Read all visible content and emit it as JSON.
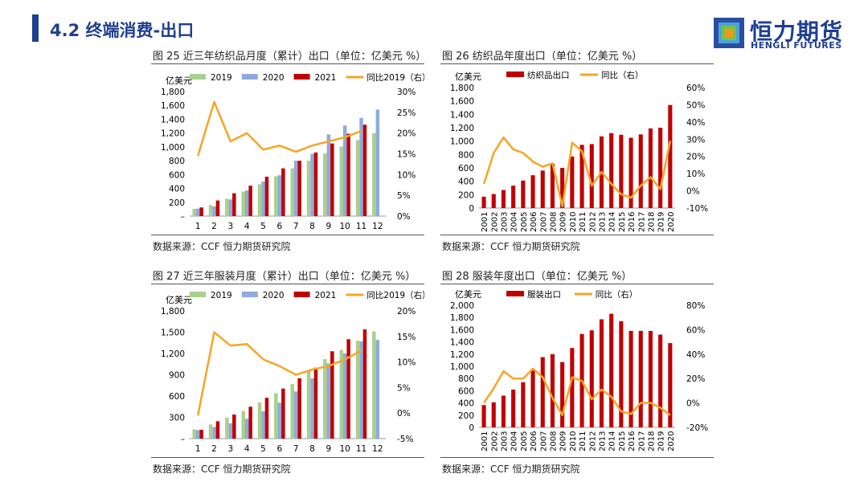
{
  "header": {
    "title": "4.2 终端消费-出口"
  },
  "logo": {
    "cn": "恒力期货",
    "en": "HENGLI FUTURES"
  },
  "colors": {
    "green": "#a9d18e",
    "blue": "#8faadc",
    "red": "#c00000",
    "orange": "#f5a623",
    "navy": "#1f3f8f"
  },
  "chart_data": [
    {
      "id": "fig25",
      "type": "bar",
      "title": "图 25 近三年纺织品月度（累计）出口（单位：亿美元 %）",
      "source": "数据来源：CCF 恒力期货研究院",
      "left_axis_label": "亿美元",
      "categories": [
        "1",
        "2",
        "3",
        "4",
        "5",
        "6",
        "7",
        "8",
        "9",
        "10",
        "11",
        "12"
      ],
      "ylim": [
        0,
        1800
      ],
      "yticks": [
        "–",
        "200",
        "400",
        "600",
        "800",
        "1,000",
        "1,200",
        "1,400",
        "1,600",
        "1,800"
      ],
      "y2lim": [
        0,
        30
      ],
      "y2ticks": [
        "0%",
        "5%",
        "10%",
        "15%",
        "20%",
        "25%",
        "30%"
      ],
      "series": [
        {
          "name": "2019",
          "kind": "bar",
          "color": "#a9d18e",
          "values": [
            105,
            160,
            250,
            355,
            460,
            575,
            690,
            800,
            905,
            1005,
            1100,
            1200
          ]
        },
        {
          "name": "2020",
          "kind": "bar",
          "color": "#8faadc",
          "values": [
            108,
            140,
            240,
            370,
            500,
            590,
            800,
            900,
            1180,
            1310,
            1420,
            1540
          ]
        },
        {
          "name": "2021",
          "kind": "bar",
          "color": "#c00000",
          "values": [
            125,
            225,
            330,
            440,
            570,
            690,
            800,
            920,
            1050,
            1190,
            1320,
            null
          ]
        },
        {
          "name": "同比2019（右）",
          "kind": "line",
          "color": "#f5a623",
          "axis": "right",
          "values": [
            14.5,
            27.5,
            18,
            20,
            16,
            17,
            15.5,
            17,
            18,
            19,
            20.5,
            null
          ]
        }
      ]
    },
    {
      "id": "fig26",
      "type": "bar",
      "title": "图 26 纺织品年度出口（单位：亿美元 %）",
      "source": "数据来源：CCF 恒力期货研究院",
      "left_axis_label": "亿美元",
      "categories": [
        "2001",
        "2002",
        "2003",
        "2004",
        "2005",
        "2006",
        "2007",
        "2008",
        "2009",
        "2010",
        "2011",
        "2012",
        "2013",
        "2014",
        "2015",
        "2016",
        "2017",
        "2018",
        "2019",
        "2020"
      ],
      "ylim": [
        0,
        1800
      ],
      "yticks": [
        "0",
        "200",
        "400",
        "600",
        "800",
        "1,000",
        "1,200",
        "1,400",
        "1,600",
        "1,800"
      ],
      "y2lim": [
        -10,
        60
      ],
      "y2ticks": [
        "-10%",
        "0%",
        "10%",
        "20%",
        "30%",
        "40%",
        "50%",
        "60%"
      ],
      "series": [
        {
          "name": "纺织品出口",
          "kind": "bar",
          "color": "#c00000",
          "values": [
            170,
            210,
            270,
            335,
            410,
            490,
            560,
            660,
            600,
            770,
            945,
            955,
            1070,
            1120,
            1095,
            1050,
            1100,
            1190,
            1200,
            1540
          ]
        },
        {
          "name": "同比（右）",
          "kind": "line",
          "color": "#f5a623",
          "axis": "right",
          "values": [
            4,
            22,
            31,
            24,
            22,
            17,
            14,
            16,
            -9,
            28,
            23,
            3,
            11,
            4,
            -2,
            -4,
            3,
            8,
            1,
            29
          ]
        }
      ]
    },
    {
      "id": "fig27",
      "type": "bar",
      "title": "图 27 近三年服装月度（累计）出口（单位：亿美元 %）",
      "source": "数据来源：CCF 恒力期货研究院",
      "left_axis_label": "亿美元",
      "categories": [
        "1",
        "2",
        "3",
        "4",
        "5",
        "6",
        "7",
        "8",
        "9",
        "10",
        "11",
        "12"
      ],
      "ylim": [
        0,
        1800
      ],
      "yticks": [
        "–",
        "300",
        "600",
        "900",
        "1,200",
        "1,500",
        "1,800"
      ],
      "y2lim": [
        -5,
        20
      ],
      "y2ticks": [
        "-5%",
        "0%",
        "5%",
        "10%",
        "15%",
        "20%"
      ],
      "series": [
        {
          "name": "2019",
          "kind": "bar",
          "color": "#a9d18e",
          "values": [
            130,
            200,
            295,
            390,
            510,
            640,
            770,
            965,
            1120,
            1250,
            1380,
            1510
          ]
        },
        {
          "name": "2020",
          "kind": "bar",
          "color": "#8faadc",
          "values": [
            120,
            165,
            215,
            280,
            385,
            505,
            665,
            850,
            1060,
            1200,
            1370,
            1390
          ]
        },
        {
          "name": "2021",
          "kind": "bar",
          "color": "#c00000",
          "values": [
            125,
            245,
            340,
            450,
            575,
            705,
            850,
            1000,
            1230,
            1400,
            1540,
            null
          ]
        },
        {
          "name": "同比2019（右）",
          "kind": "line",
          "color": "#f5a623",
          "axis": "right",
          "values": [
            -0.5,
            15.8,
            13.2,
            13.5,
            10.5,
            9.2,
            7.5,
            8.5,
            9.2,
            10.5,
            12.2,
            null
          ]
        }
      ]
    },
    {
      "id": "fig28",
      "type": "bar",
      "title": "图 28 服装年度出口（单位：亿美元 %）",
      "source": "数据来源：CCF 恒力期货研究院",
      "left_axis_label": "亿美元",
      "categories": [
        "2001",
        "2002",
        "2003",
        "2004",
        "2005",
        "2006",
        "2007",
        "2008",
        "2009",
        "2010",
        "2011",
        "2012",
        "2013",
        "2014",
        "2015",
        "2016",
        "2017",
        "2018",
        "2019",
        "2020"
      ],
      "ylim": [
        0,
        2000
      ],
      "yticks": [
        "0",
        "200",
        "400",
        "600",
        "800",
        "1,000",
        "1,200",
        "1,400",
        "1,600",
        "1,800",
        "2,000"
      ],
      "y2lim": [
        -20,
        80
      ],
      "y2ticks": [
        "-20%",
        "0%",
        "20%",
        "40%",
        "60%",
        "80%"
      ],
      "series": [
        {
          "name": "服装出口",
          "kind": "bar",
          "color": "#c00000",
          "values": [
            365,
            410,
            520,
            620,
            740,
            950,
            1150,
            1200,
            1070,
            1300,
            1530,
            1590,
            1770,
            1860,
            1740,
            1580,
            1580,
            1580,
            1520,
            1380
          ]
        },
        {
          "name": "同比（右）",
          "kind": "line",
          "color": "#f5a623",
          "axis": "right",
          "values": [
            0,
            12,
            26,
            20,
            20,
            28,
            21,
            4,
            -10,
            21,
            18,
            3,
            11,
            5,
            -7,
            -9,
            0,
            0,
            -4,
            -10
          ]
        }
      ]
    }
  ]
}
